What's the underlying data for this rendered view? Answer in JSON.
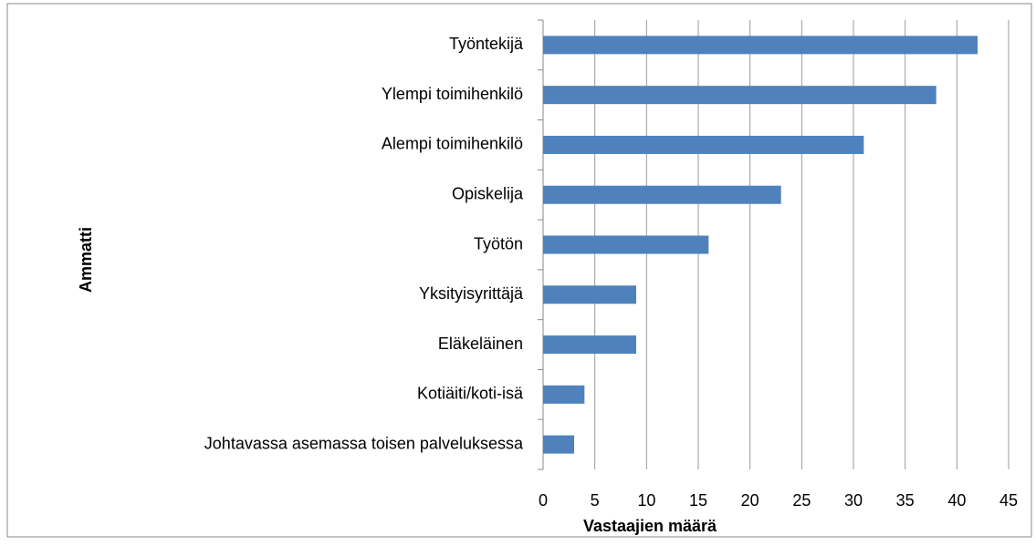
{
  "chart_data": {
    "type": "bar",
    "orientation": "horizontal",
    "categories": [
      "Työntekijä",
      "Ylempi toimihenkilö",
      "Alempi toimihenkilö",
      "Opiskelija",
      "Työtön",
      "Yksityisyrittäjä",
      "Eläkeläinen",
      "Kotiäiti/koti-isä",
      "Johtavassa asemassa toisen palveluksessa"
    ],
    "values": [
      42,
      38,
      31,
      23,
      16,
      9,
      9,
      4,
      3
    ],
    "color": "#4f81bd",
    "x_label": "Vastaajien määrä",
    "y_label": "Ammatti",
    "xlim": [
      0,
      45
    ],
    "xticks": [
      0,
      5,
      10,
      15,
      20,
      25,
      30,
      35,
      40,
      45
    ],
    "grid": true
  }
}
